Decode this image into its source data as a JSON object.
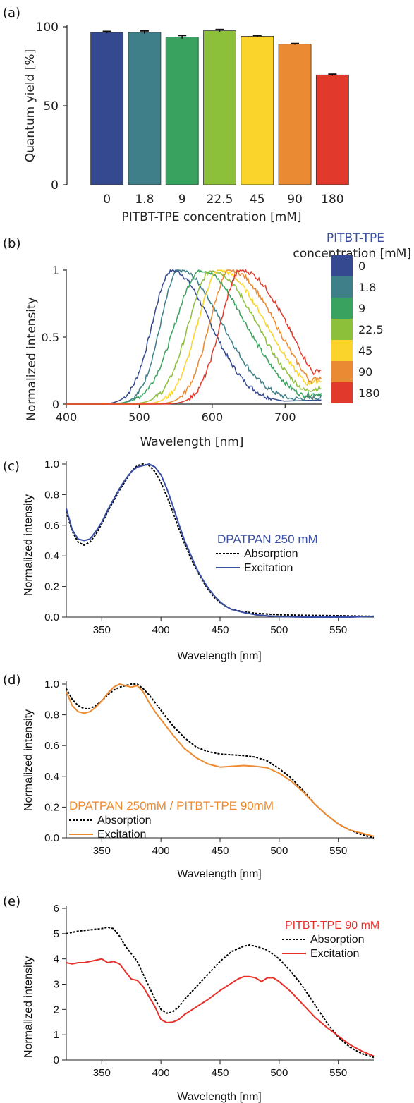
{
  "chart_data": [
    {
      "panel": "(a)",
      "type": "bar",
      "categories": [
        "0",
        "1.8",
        "9",
        "22.5",
        "45",
        "90",
        "180"
      ],
      "values": [
        96.5,
        96.5,
        93.5,
        97.5,
        94,
        89,
        69.5
      ],
      "errors": [
        0.6,
        0.9,
        1.0,
        0.8,
        0.4,
        0.4,
        0.5
      ],
      "colors": [
        "#34498f",
        "#3f7f8a",
        "#3aa25f",
        "#8cc03b",
        "#fad42b",
        "#ea8a33",
        "#e13a2c"
      ],
      "xlabel": "PITBT-TPE concentration [mM]",
      "ylabel": "Quantum yield [%]",
      "yticks": [
        "0",
        "50",
        "100"
      ],
      "ylim": [
        0,
        100
      ]
    },
    {
      "panel": "(b)",
      "type": "line",
      "xlabel": "Wavelength [nm]",
      "ylabel": "Normalized intensity",
      "xlim": [
        400,
        750
      ],
      "ylim": [
        0,
        1
      ],
      "xticks": [
        "400",
        "500",
        "600",
        "700"
      ],
      "yticks": [
        "0",
        "0.5",
        "1"
      ],
      "legend_title_1": "PITBT-TPE",
      "legend_title_2": "concentration [mM]",
      "series": [
        {
          "name": "0",
          "color": "#34498f",
          "peak": 545,
          "wl": 38,
          "wr": 78,
          "end": 0.03
        },
        {
          "name": "1.8",
          "color": "#3f7f8a",
          "peak": 555,
          "wl": 36,
          "wr": 88,
          "end": 0.05
        },
        {
          "name": "9",
          "color": "#3aa25f",
          "peak": 585,
          "wl": 50,
          "wr": 95,
          "end": 0.08
        },
        {
          "name": "22.5",
          "color": "#8cc03b",
          "peak": 600,
          "wl": 45,
          "wr": 95,
          "end": 0.12
        },
        {
          "name": "45",
          "color": "#fad42b",
          "peak": 610,
          "wl": 42,
          "wr": 100,
          "end": 0.18
        },
        {
          "name": "90",
          "color": "#ea8a33",
          "peak": 625,
          "wl": 40,
          "wr": 100,
          "end": 0.2
        },
        {
          "name": "180",
          "color": "#e13a2c",
          "peak": 640,
          "wl": 40,
          "wr": 105,
          "end": 0.26
        }
      ]
    },
    {
      "panel": "(c)",
      "type": "line",
      "title": "DPATPAN 250 mM",
      "title_color": "#3a4fa3",
      "xlabel": "Wavelength [nm]",
      "ylabel": "Normalized intensity",
      "xlim": [
        320,
        580
      ],
      "ylim": [
        0,
        1
      ],
      "xticks": [
        "350",
        "400",
        "450",
        "500",
        "550"
      ],
      "yticks": [
        "0.0",
        "0.2",
        "0.4",
        "0.6",
        "0.8",
        "1.0"
      ],
      "series": [
        {
          "name": "Absorption",
          "color": "#000000",
          "dash": true,
          "x": [
            320,
            325,
            330,
            335,
            340,
            345,
            350,
            355,
            360,
            365,
            370,
            375,
            380,
            385,
            390,
            395,
            400,
            405,
            410,
            415,
            420,
            425,
            430,
            435,
            440,
            445,
            450,
            455,
            460,
            470,
            480,
            490,
            500,
            520,
            540,
            560,
            580
          ],
          "y": [
            0.69,
            0.56,
            0.49,
            0.47,
            0.49,
            0.54,
            0.61,
            0.69,
            0.76,
            0.83,
            0.89,
            0.95,
            0.99,
            1.0,
            0.99,
            0.95,
            0.88,
            0.79,
            0.69,
            0.58,
            0.48,
            0.39,
            0.31,
            0.24,
            0.18,
            0.13,
            0.095,
            0.07,
            0.05,
            0.035,
            0.025,
            0.02,
            0.015,
            0.012,
            0.01,
            0.008,
            0.005
          ]
        },
        {
          "name": "Excitation",
          "color": "#3a4fa3",
          "dash": false,
          "x": [
            320,
            325,
            330,
            335,
            340,
            345,
            350,
            355,
            360,
            365,
            370,
            375,
            380,
            385,
            390,
            395,
            400,
            405,
            410,
            415,
            420,
            425,
            430,
            435,
            440,
            445,
            450,
            455,
            460,
            470,
            480,
            490,
            500,
            520,
            540,
            560,
            580
          ],
          "y": [
            0.71,
            0.57,
            0.51,
            0.5,
            0.51,
            0.56,
            0.62,
            0.7,
            0.77,
            0.84,
            0.9,
            0.95,
            0.98,
            0.99,
            1.0,
            0.98,
            0.93,
            0.84,
            0.73,
            0.61,
            0.5,
            0.41,
            0.32,
            0.25,
            0.19,
            0.14,
            0.1,
            0.07,
            0.05,
            0.03,
            0.015,
            0.008,
            0.003,
            0.0,
            0.0,
            0.0,
            0.005
          ]
        }
      ]
    },
    {
      "panel": "(d)",
      "type": "line",
      "title": "DPATPAN 250mM / PITBT-TPE 90mM",
      "title_color": "#ee8a2f",
      "xlabel": "Wavelength [nm]",
      "ylabel": "Normalized intensity",
      "xlim": [
        320,
        580
      ],
      "ylim": [
        0,
        1
      ],
      "xticks": [
        "350",
        "400",
        "450",
        "500",
        "550"
      ],
      "yticks": [
        "0.0",
        "0.2",
        "0.4",
        "0.6",
        "0.8",
        "1.0"
      ],
      "series": [
        {
          "name": "Absorption",
          "color": "#000000",
          "dash": true,
          "x": [
            320,
            325,
            330,
            335,
            340,
            345,
            350,
            355,
            360,
            365,
            370,
            375,
            380,
            385,
            390,
            395,
            400,
            410,
            420,
            430,
            440,
            450,
            460,
            470,
            480,
            490,
            500,
            510,
            520,
            530,
            540,
            550,
            560,
            570,
            580
          ],
          "y": [
            0.97,
            0.9,
            0.86,
            0.84,
            0.84,
            0.86,
            0.89,
            0.93,
            0.96,
            0.98,
            0.99,
            1.0,
            1.0,
            0.97,
            0.93,
            0.88,
            0.83,
            0.73,
            0.65,
            0.59,
            0.56,
            0.545,
            0.54,
            0.535,
            0.525,
            0.5,
            0.45,
            0.39,
            0.31,
            0.22,
            0.15,
            0.09,
            0.05,
            0.02,
            0.0
          ]
        },
        {
          "name": "Excitation",
          "color": "#ee8a2f",
          "dash": false,
          "x": [
            320,
            325,
            330,
            335,
            340,
            345,
            350,
            355,
            360,
            365,
            370,
            375,
            380,
            385,
            390,
            395,
            400,
            410,
            420,
            430,
            440,
            450,
            460,
            470,
            480,
            490,
            500,
            510,
            520,
            530,
            540,
            550,
            560,
            570,
            580
          ],
          "y": [
            0.95,
            0.86,
            0.82,
            0.81,
            0.82,
            0.85,
            0.89,
            0.94,
            0.98,
            1.0,
            0.99,
            0.98,
            0.99,
            0.95,
            0.88,
            0.82,
            0.77,
            0.67,
            0.58,
            0.52,
            0.48,
            0.46,
            0.465,
            0.47,
            0.465,
            0.455,
            0.42,
            0.37,
            0.3,
            0.22,
            0.15,
            0.09,
            0.05,
            0.03,
            0.01
          ]
        }
      ]
    },
    {
      "panel": "(e)",
      "type": "line",
      "title": "PITBT-TPE 90 mM",
      "title_color": "#e8302a",
      "xlabel": "Wavelength [nm]",
      "ylabel": "Normalized intensity",
      "xlim": [
        320,
        580
      ],
      "ylim": [
        0,
        6
      ],
      "xticks": [
        "350",
        "400",
        "450",
        "500",
        "550"
      ],
      "yticks": [
        "0",
        "1",
        "2",
        "3",
        "4",
        "5",
        "6"
      ],
      "series": [
        {
          "name": "Absorption",
          "color": "#000000",
          "dash": true,
          "x": [
            320,
            330,
            340,
            350,
            355,
            360,
            365,
            370,
            375,
            380,
            385,
            390,
            395,
            400,
            405,
            410,
            415,
            420,
            430,
            440,
            450,
            460,
            470,
            475,
            480,
            490,
            500,
            510,
            520,
            530,
            540,
            550,
            560,
            570,
            580
          ],
          "y": [
            5.0,
            5.1,
            5.15,
            5.2,
            5.25,
            5.2,
            4.9,
            4.5,
            4.2,
            3.9,
            3.4,
            2.9,
            2.4,
            2.0,
            1.85,
            1.9,
            2.1,
            2.4,
            2.9,
            3.4,
            3.9,
            4.3,
            4.5,
            4.55,
            4.5,
            4.35,
            4.0,
            3.5,
            2.9,
            2.2,
            1.5,
            0.9,
            0.5,
            0.25,
            0.1
          ]
        },
        {
          "name": "Excitation",
          "color": "#e8302a",
          "dash": false,
          "x": [
            320,
            325,
            330,
            335,
            340,
            345,
            350,
            355,
            360,
            365,
            370,
            375,
            380,
            385,
            390,
            395,
            400,
            405,
            410,
            415,
            420,
            430,
            440,
            450,
            460,
            465,
            470,
            475,
            480,
            485,
            490,
            495,
            500,
            510,
            520,
            530,
            540,
            550,
            560,
            570,
            580
          ],
          "y": [
            3.85,
            3.8,
            3.85,
            3.85,
            3.9,
            3.95,
            4.0,
            3.85,
            3.9,
            3.8,
            3.5,
            3.2,
            3.15,
            2.9,
            2.5,
            2.1,
            1.6,
            1.48,
            1.5,
            1.6,
            1.8,
            2.1,
            2.4,
            2.75,
            3.05,
            3.2,
            3.3,
            3.3,
            3.25,
            3.1,
            3.25,
            3.25,
            3.1,
            2.7,
            2.2,
            1.7,
            1.3,
            0.95,
            0.6,
            0.35,
            0.15
          ]
        }
      ]
    }
  ]
}
